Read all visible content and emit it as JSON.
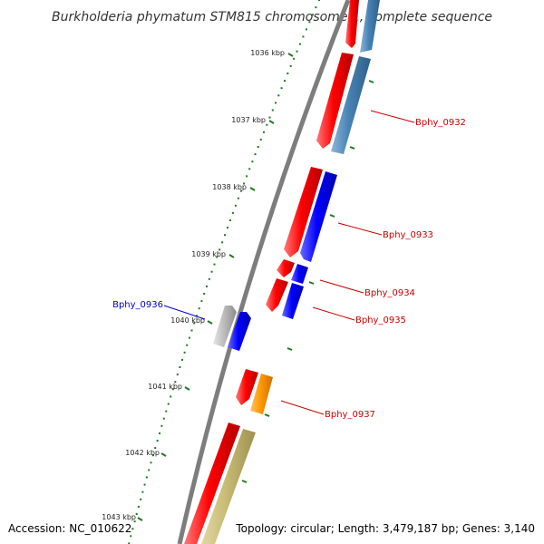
{
  "title": "Burkholderia phymatum STM815 chromosome 1, complete sequence",
  "footer": {
    "accession": "Accession: NC_010622",
    "summary": "Topology: circular; Length: 3,479,187 bp; Genes: 3,140"
  },
  "colors": {
    "backbone": "#808080",
    "tick": "#1f7a1f",
    "label_reverse": "#cc0000",
    "label_forward": "#0000cc",
    "gene_red": "#ff0000",
    "gene_blue": "#0000ff",
    "gene_steelblue": "#4682b4",
    "gene_orange": "#ff9900",
    "gene_khaki": "#c8bb75",
    "gene_grey": "#b8b8b8"
  },
  "scale": {
    "ticks": [
      {
        "label": "1036 kbp"
      },
      {
        "label": "1037 kbp"
      },
      {
        "label": "1038 kbp"
      },
      {
        "label": "1039 kbp"
      },
      {
        "label": "1040 kbp"
      },
      {
        "label": "1041 kbp"
      },
      {
        "label": "1042 kbp"
      },
      {
        "label": "1043 kbp"
      }
    ]
  },
  "gene_labels": [
    {
      "id": "Bphy_0932",
      "text": "Bphy_0932",
      "strand": "reverse"
    },
    {
      "id": "Bphy_0933",
      "text": "Bphy_0933",
      "strand": "reverse"
    },
    {
      "id": "Bphy_0934",
      "text": "Bphy_0934",
      "strand": "reverse"
    },
    {
      "id": "Bphy_0935",
      "text": "Bphy_0935",
      "strand": "reverse"
    },
    {
      "id": "Bphy_0936",
      "text": "Bphy_0936",
      "strand": "forward"
    },
    {
      "id": "Bphy_0937",
      "text": "Bphy_0937",
      "strand": "reverse"
    }
  ]
}
